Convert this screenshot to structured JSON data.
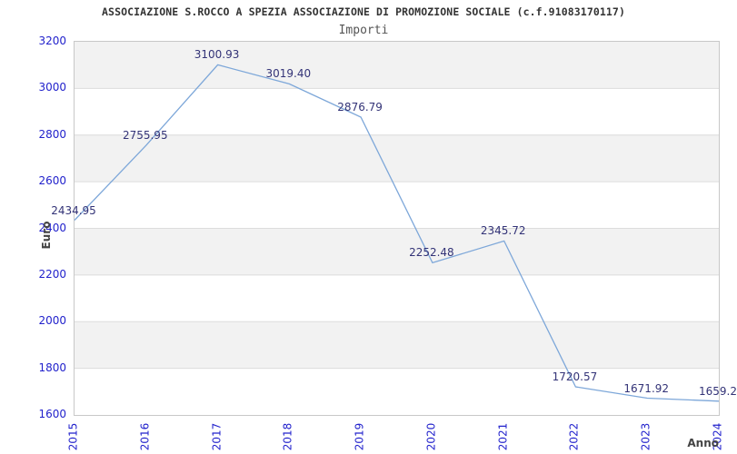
{
  "header": {
    "title": "ASSOCIAZIONE S.ROCCO A SPEZIA ASSOCIAZIONE DI PROMOZIONE SOCIALE (c.f.91083170117)",
    "subtitle": "Importi"
  },
  "y_axis": {
    "label": "Euro",
    "ticks": [
      3200,
      3000,
      2800,
      2600,
      2400,
      2200,
      2000,
      1800,
      1600
    ]
  },
  "x_axis": {
    "label": "Anno",
    "ticks": [
      "2015",
      "2016",
      "2017",
      "2018",
      "2019",
      "2020",
      "2021",
      "2022",
      "2023",
      "2024"
    ]
  },
  "chart_data": {
    "type": "line",
    "title": "ASSOCIAZIONE S.ROCCO A SPEZIA ASSOCIAZIONE DI PROMOZIONE SOCIALE (c.f.91083170117)",
    "subtitle": "Importi",
    "xlabel": "Anno",
    "ylabel": "Euro",
    "x": [
      2015,
      2016,
      2017,
      2018,
      2019,
      2020,
      2021,
      2022,
      2023,
      2024
    ],
    "values": [
      2434.95,
      2755.95,
      3100.93,
      3019.4,
      2876.79,
      2252.48,
      2345.72,
      1720.57,
      1671.92,
      1659.2
    ],
    "point_labels": [
      "2434.95",
      "2755.95",
      "3100.93",
      "3019.40",
      "2876.79",
      "2252.48",
      "2345.72",
      "1720.57",
      "1671.92",
      "1659.2"
    ],
    "ylim": [
      1600,
      3200
    ],
    "y_tick_step": 200,
    "grid": "horizontal-bands",
    "legend": "none"
  },
  "colors": {
    "line": "#7da7d9",
    "band_fill": "#f2f2f2",
    "gridline": "#dcdcdc",
    "plot_border": "#c8c8c8",
    "tick_label": "#2222cc",
    "point_label": "#333377",
    "title": "#333333",
    "subtitle": "#555555",
    "axis_title": "#444444"
  }
}
